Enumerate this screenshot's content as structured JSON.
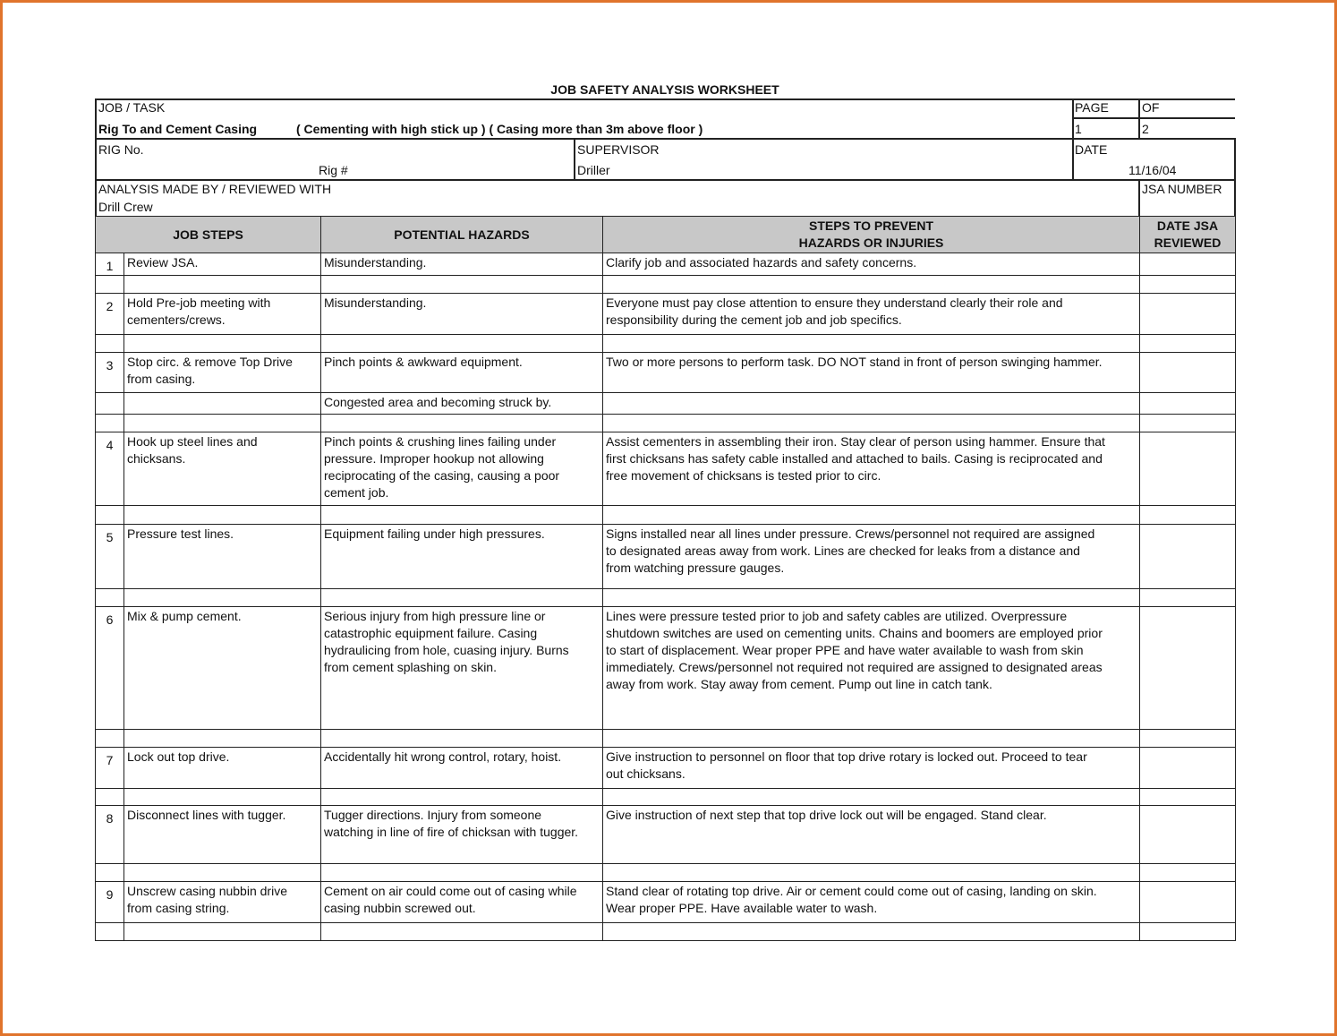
{
  "title": "JOB SAFETY ANALYSIS WORKSHEET",
  "header": {
    "job_task_label": "JOB / TASK",
    "job_task_value": "Rig To and Cement Casing",
    "job_task_detail": "( Cementing with high stick up ) ( Casing more than 3m above floor )",
    "page_label": "PAGE",
    "page_value": "1",
    "of_label": "OF",
    "of_value": "2",
    "rig_label": "RIG No.",
    "rig_value": "Rig #",
    "supervisor_label": "SUPERVISOR",
    "supervisor_value": "Driller",
    "date_label": "DATE",
    "date_value": "11/16/04",
    "analysis_label": "ANALYSIS MADE BY / REVIEWED WITH",
    "analysis_value": "Drill Crew",
    "jsa_number_label": "JSA NUMBER"
  },
  "columns": {
    "job_steps": "JOB STEPS",
    "hazards": "POTENTIAL HAZARDS",
    "prevent": "STEPS TO PREVENT\nHAZARDS OR INJURIES",
    "reviewed": "DATE JSA\nREVIEWED"
  },
  "rows": [
    {
      "num": "1",
      "step": "Review JSA.",
      "hazard": "Misunderstanding.",
      "prevent": "Clarify job and associated hazards and safety concerns."
    },
    {
      "num": "2",
      "step": "Hold Pre-job meeting with\ncementers/crews.",
      "hazard": "Misunderstanding.",
      "prevent": "Everyone must pay close attention to ensure they understand clearly their role and\nresponsibility during the cement job and job specifics."
    },
    {
      "num": "3",
      "step": "Stop circ. & remove Top Drive\nfrom casing.",
      "hazard": "Pinch points & awkward equipment.",
      "prevent": "Two or more persons to perform task. DO NOT stand in front of person swinging hammer."
    },
    {
      "num": "",
      "step": "",
      "hazard": "Congested area and becoming struck by.",
      "prevent": ""
    },
    {
      "num": "4",
      "step": "Hook up steel lines and\nchicksans.",
      "hazard": "Pinch points & crushing lines failing under\npressure. Improper hookup not allowing\nreciprocating of the casing, causing a poor\ncement job.",
      "prevent": "Assist cementers in assembling their iron. Stay clear of person using hammer. Ensure that\nfirst chicksans has safety cable installed and attached to bails. Casing is reciprocated and\nfree movement of chicksans is tested prior to circ."
    },
    {
      "num": "5",
      "step": "Pressure test lines.",
      "hazard": "Equipment failing under high pressures.",
      "prevent": "Signs installed near all lines under pressure. Crews/personnel not required are assigned\nto designated areas away from work. Lines are checked for leaks from a distance and\nfrom watching pressure gauges."
    },
    {
      "num": "6",
      "step": "Mix & pump cement.",
      "hazard": "Serious injury from high pressure line or\ncatastrophic equipment failure.  Casing\nhydraulicing from hole, cuasing injury.  Burns\nfrom cement splashing on skin.",
      "prevent": "Lines were pressure tested prior to job and safety cables are utilized. Overpressure\nshutdown switches are used on cementing units. Chains and boomers are employed prior\nto start of displacement. Wear proper PPE and have water available to wash from skin\nimmediately. Crews/personnel not required not required are assigned to designated areas\naway from work. Stay away from cement. Pump out line in catch tank."
    },
    {
      "num": "7",
      "step": "Lock out top drive.",
      "hazard": "Accidentally hit wrong control, rotary, hoist.",
      "prevent": "Give instruction to personnel on floor that top drive rotary is locked out. Proceed to tear\nout chicksans."
    },
    {
      "num": "8",
      "step": "Disconnect lines with tugger.",
      "hazard": "Tugger directions. Injury from someone\nwatching in line of fire of chicksan with tugger.",
      "prevent": "Give instruction of next step that top drive lock out will be engaged. Stand clear."
    },
    {
      "num": "9",
      "step": "Unscrew casing nubbin drive\nfrom casing string.",
      "hazard": "Cement on air could come out of casing while\ncasing nubbin screwed out.",
      "prevent": "Stand clear of rotating top drive. Air or cement could come out of casing, landing on skin.\nWear proper PPE. Have available water to wash."
    }
  ],
  "colors": {
    "frame": "#e0742c",
    "header_fill": "#c8c8c8"
  }
}
